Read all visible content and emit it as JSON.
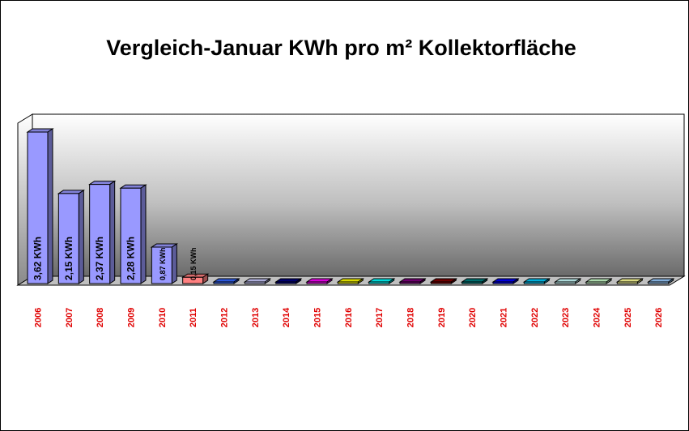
{
  "chart_data": {
    "type": "bar",
    "title": "Vergleich-Januar KWh pro m² Kollektorfläche",
    "xlabel": "",
    "ylabel": "",
    "ylim": [
      0,
      3.8
    ],
    "grid": false,
    "legend": "none",
    "categories": [
      "2006",
      "2007",
      "2008",
      "2009",
      "2010",
      "2011",
      "2012",
      "2013",
      "2014",
      "2015",
      "2016",
      "2017",
      "2018",
      "2019",
      "2020",
      "2021",
      "2022",
      "2023",
      "2024",
      "2025",
      "2026"
    ],
    "values": [
      3.62,
      2.15,
      2.37,
      2.28,
      0.87,
      0.15,
      0,
      0,
      0,
      0,
      0,
      0,
      0,
      0,
      0,
      0,
      0,
      0,
      0,
      0,
      0
    ],
    "data_labels": [
      "3,62 KWh",
      "2,15 KWh",
      "2,37 KWh",
      "2,28 KWh",
      "0,87 KWh",
      "0,15 KWh",
      "",
      "",
      "",
      "",
      "",
      "",
      "",
      "",
      "",
      "",
      "",
      "",
      "",
      "",
      ""
    ],
    "colors": [
      "#9999ff",
      "#9999ff",
      "#9999ff",
      "#9999ff",
      "#9999ff",
      "#ff8080",
      "#3366ff",
      "#ccccff",
      "#000080",
      "#ff00ff",
      "#ffff00",
      "#00ffff",
      "#800080",
      "#800000",
      "#008080",
      "#0000ff",
      "#00ccff",
      "#ccffff",
      "#ccffcc",
      "#ffff99",
      "#99ccff"
    ]
  }
}
